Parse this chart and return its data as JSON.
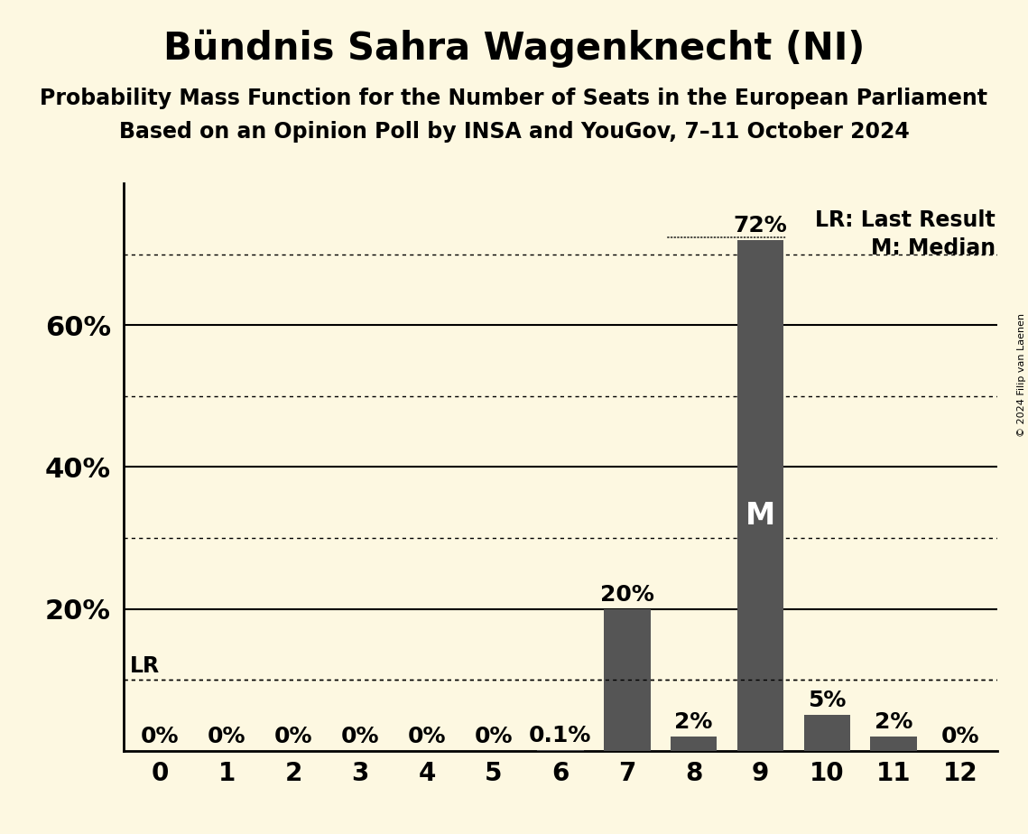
{
  "title": "Bündnis Sahra Wagenknecht (NI)",
  "subtitle1": "Probability Mass Function for the Number of Seats in the European Parliament",
  "subtitle2": "Based on an Opinion Poll by INSA and YouGov, 7–11 October 2024",
  "copyright": "© 2024 Filip van Laenen",
  "categories": [
    0,
    1,
    2,
    3,
    4,
    5,
    6,
    7,
    8,
    9,
    10,
    11,
    12
  ],
  "values": [
    0.0,
    0.0,
    0.0,
    0.0,
    0.0,
    0.0,
    0.001,
    0.2,
    0.02,
    0.72,
    0.05,
    0.02,
    0.0
  ],
  "labels": [
    "0%",
    "0%",
    "0%",
    "0%",
    "0%",
    "0%",
    "0.1%",
    "20%",
    "2%",
    "72%",
    "5%",
    "2%",
    "0%"
  ],
  "bar_color": "#555555",
  "background_color": "#fdf8e1",
  "lr_value": 0.1,
  "median_seat": 9,
  "ylim_max": 0.8,
  "yticks": [
    0.0,
    0.1,
    0.2,
    0.3,
    0.4,
    0.5,
    0.6,
    0.7,
    0.8
  ],
  "solid_yticks": [
    0.2,
    0.4,
    0.6
  ],
  "dotted_yticks": [
    0.1,
    0.3,
    0.5,
    0.7
  ],
  "title_fontsize": 30,
  "subtitle_fontsize": 17,
  "axis_tick_fontsize": 20,
  "bar_label_fontsize": 18,
  "legend_fontsize": 17,
  "ylabel_fontsize": 22
}
